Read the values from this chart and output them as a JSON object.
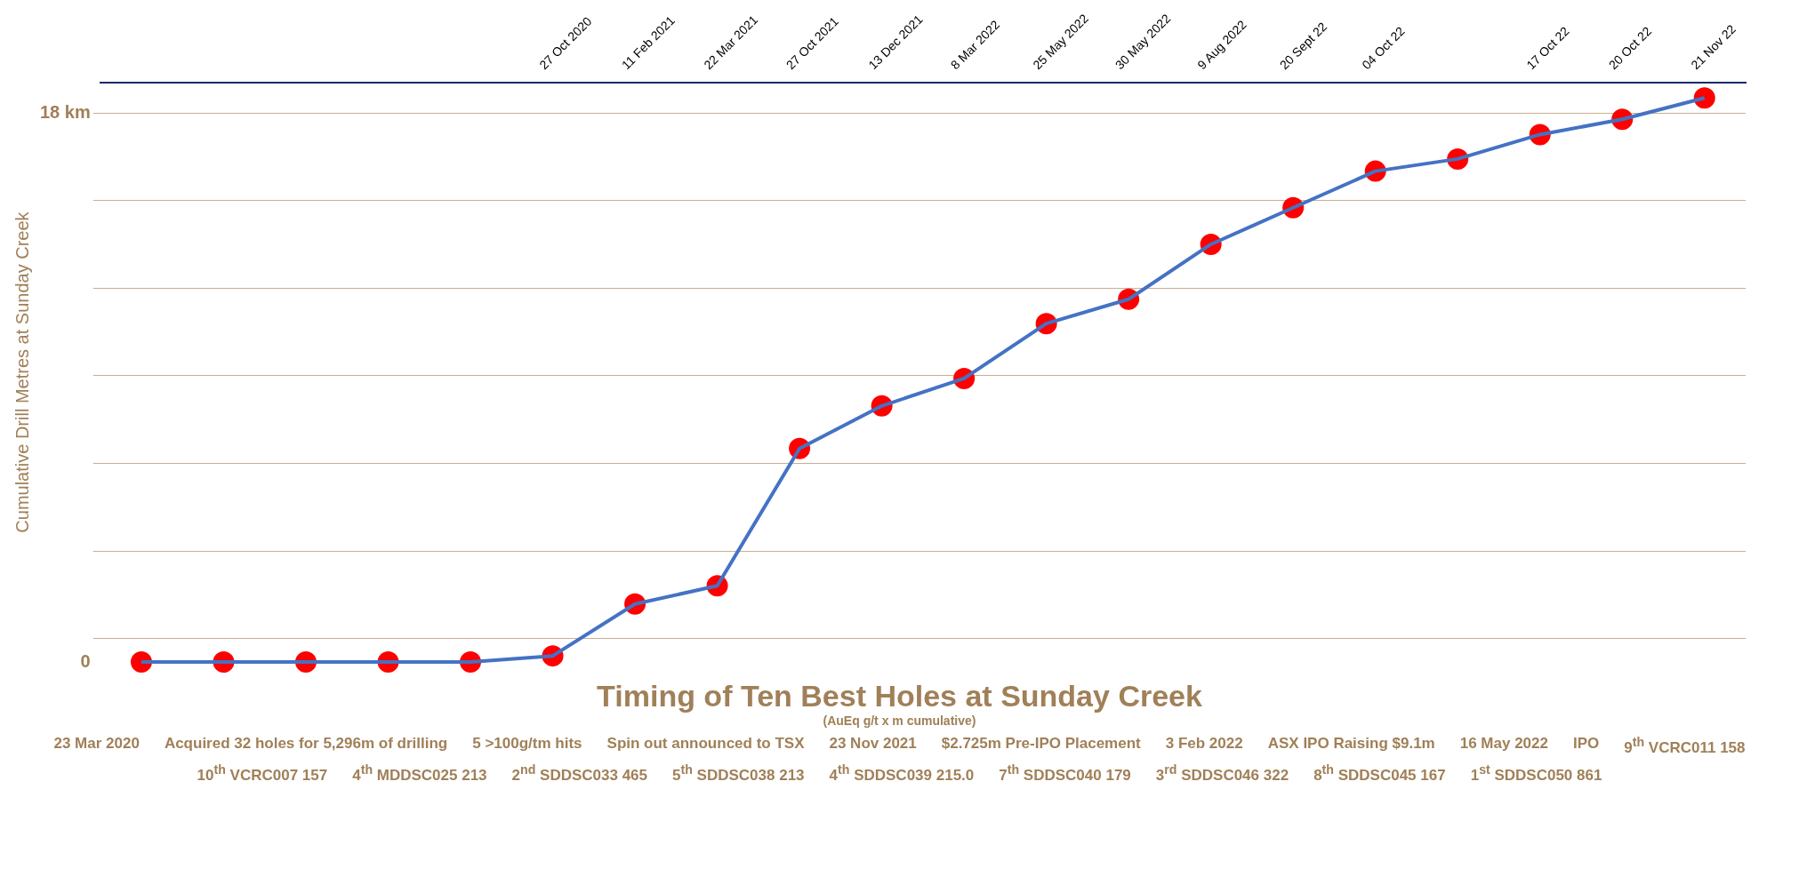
{
  "chart_data": {
    "type": "line",
    "title": "Timing of Ten Best Holes at Sunday Creek",
    "subtitle": "(AuEq g/t x m cumulative)",
    "ylabel": "Cumulative Drill Metres at Sunday Creek",
    "categories": [
      null,
      null,
      null,
      null,
      null,
      "27 Oct 2020",
      "11 Feb 2021",
      "22 Mar 2021",
      "27 Oct 2021",
      "13 Dec 2021",
      "8 Mar 2022",
      "25 May 2022",
      "30 May 2022",
      "9 Aug 2022",
      "20 Sept 22",
      "04 Oct 22",
      null,
      "17 Oct 22",
      "20 Oct 22",
      "21 Nov 22"
    ],
    "series": [
      {
        "color": "#4472c4",
        "colors": [
          "#ff0000",
          "#ff0000",
          "#ff0000",
          "#ff0000",
          "#ff0000",
          "#ff0000",
          "#ff0000",
          "#ff0000",
          "#ff0000",
          "#ff0000",
          "#ff0000",
          "#ff0000",
          "#ff0000",
          "#ff0000",
          "#ff0000",
          "#ff0000",
          "#ff0000",
          "#ff0000",
          "#ff0000",
          "#ff0000"
        ],
        "values": [
          0,
          0,
          0,
          0,
          0,
          0.2,
          1.9,
          2.5,
          7.0,
          8.4,
          9.3,
          11.1,
          11.9,
          13.7,
          14.9,
          16.1,
          16.5,
          17.3,
          17.8,
          18.5
        ]
      }
    ],
    "ylim": [
      0,
      19
    ],
    "yticks": [
      {
        "value": 0,
        "label": "0"
      },
      {
        "value": 0.77,
        "label": null
      },
      {
        "value": 3.64,
        "label": null
      },
      {
        "value": 6.52,
        "label": null
      },
      {
        "value": 9.39,
        "label": null
      },
      {
        "value": 12.26,
        "label": null
      },
      {
        "value": 15.13,
        "label": null
      },
      {
        "value": 18,
        "label": "18 km"
      }
    ],
    "grid": "y",
    "marker": "circle",
    "line_style": "solid",
    "legend": false,
    "annotations": [
      "23 Mar 2020",
      "Acquired 32 holes for 5,296m of drilling",
      "5 >100g/tm hits",
      "Spin out announced to TSX",
      "23 Nov 2021",
      "$2.725m Pre-IPO Placement",
      "3 Feb 2022",
      "ASX IPO Raising $9.1m",
      "16 May 2022",
      "IPO",
      "9$^{th}$ VCRC011 158",
      "10$^{th}$ VCRC007 157",
      "4$^{th}$ MDDSC025 213",
      "2$^{nd}$ SDDSC033 465",
      "5$^{th}$ SDDSC038 213",
      "4$^{th}$ SDDSC039 215.0",
      "7$^{th}$ SDDSC040 179",
      "3$^{rd}$ SDDSC046 322",
      "8$^{th}$ SDDSC045 167",
      "1$^{st}$ SDDSC050 861"
    ]
  }
}
